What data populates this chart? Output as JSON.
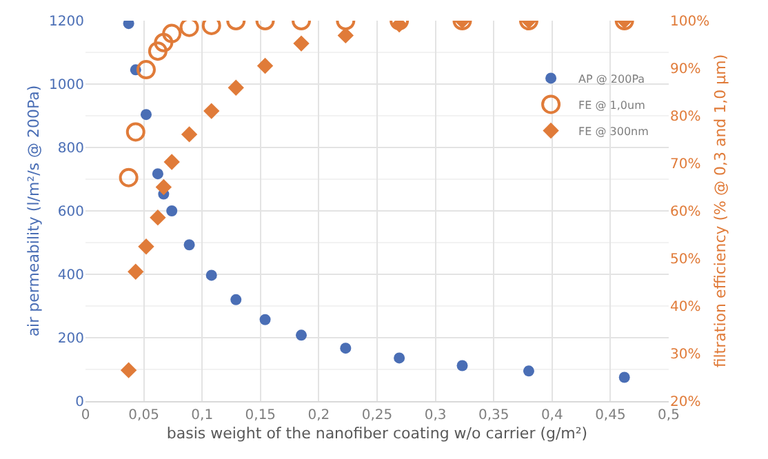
{
  "chart_data": {
    "type": "scatter",
    "xlabel": "basis weight of the nanofiber coating w/o carrier (g/m²)",
    "ylabel": "air permeability (l/m²/s @ 200Pa)",
    "y2label": "filtration efficiency (% @ 0,3 and 1,0 µm)",
    "x": [
      0.037,
      0.043,
      0.052,
      0.062,
      0.067,
      0.074,
      0.089,
      0.108,
      0.129,
      0.154,
      0.185,
      0.223,
      0.269,
      0.323,
      0.38,
      0.462
    ],
    "series": [
      {
        "name": "AP @ 200Pa",
        "color": "#4a6eb5",
        "marker": "circle",
        "values": [
          1191,
          1045,
          904,
          717,
          653,
          600,
          493,
          397,
          320,
          257,
          208,
          167,
          136,
          112,
          95,
          75
        ]
      },
      {
        "name": "FE @ 1,0um",
        "color": "#e07b39",
        "marker": "circle-open",
        "axis": "y2",
        "values": [
          67,
          76.6,
          89.7,
          93.6,
          95.4,
          97.3,
          98.6,
          99,
          100,
          100,
          100,
          100,
          100,
          100,
          100,
          100
        ]
      },
      {
        "name": "FE @ 300nm",
        "color": "#e07b39",
        "marker": "diamond",
        "axis": "y2",
        "values": [
          26.5,
          47.2,
          52.5,
          58.6,
          65,
          70.3,
          76.1,
          81,
          85.9,
          90.5,
          95.2,
          96.9,
          99.2,
          100,
          100,
          100
        ]
      }
    ],
    "xlim": [
      0,
      0.5
    ],
    "xticks": [
      0,
      {
        "value": 0.05,
        "label": "0,05"
      },
      {
        "value": 0.1,
        "label": "0,1"
      },
      {
        "value": 0.15,
        "label": "0,15"
      },
      {
        "value": 0.2,
        "label": "0,2"
      },
      {
        "value": 0.25,
        "label": "0,25"
      },
      {
        "value": 0.3,
        "label": "0,3"
      },
      {
        "value": 0.35,
        "label": "0,35"
      },
      {
        "value": 0.4,
        "label": "0,4"
      },
      {
        "value": 0.45,
        "label": "0,45"
      },
      {
        "value": 0.5,
        "label": "0,5"
      }
    ],
    "ylim": [
      0,
      1200
    ],
    "yticks": [
      0,
      200,
      400,
      600,
      800,
      1000,
      1200
    ],
    "y2lim": [
      20,
      100
    ],
    "y2ticks": [
      {
        "value": 20,
        "label": "20%"
      },
      {
        "value": 30,
        "label": "30%"
      },
      {
        "value": 40,
        "label": "40%"
      },
      {
        "value": 50,
        "label": "50%"
      },
      {
        "value": 60,
        "label": "60%"
      },
      {
        "value": 70,
        "label": "70%"
      },
      {
        "value": 80,
        "label": "80%"
      },
      {
        "value": 90,
        "label": "90%"
      },
      {
        "value": 100,
        "label": "100%"
      }
    ],
    "grid": true,
    "legend": "right"
  }
}
